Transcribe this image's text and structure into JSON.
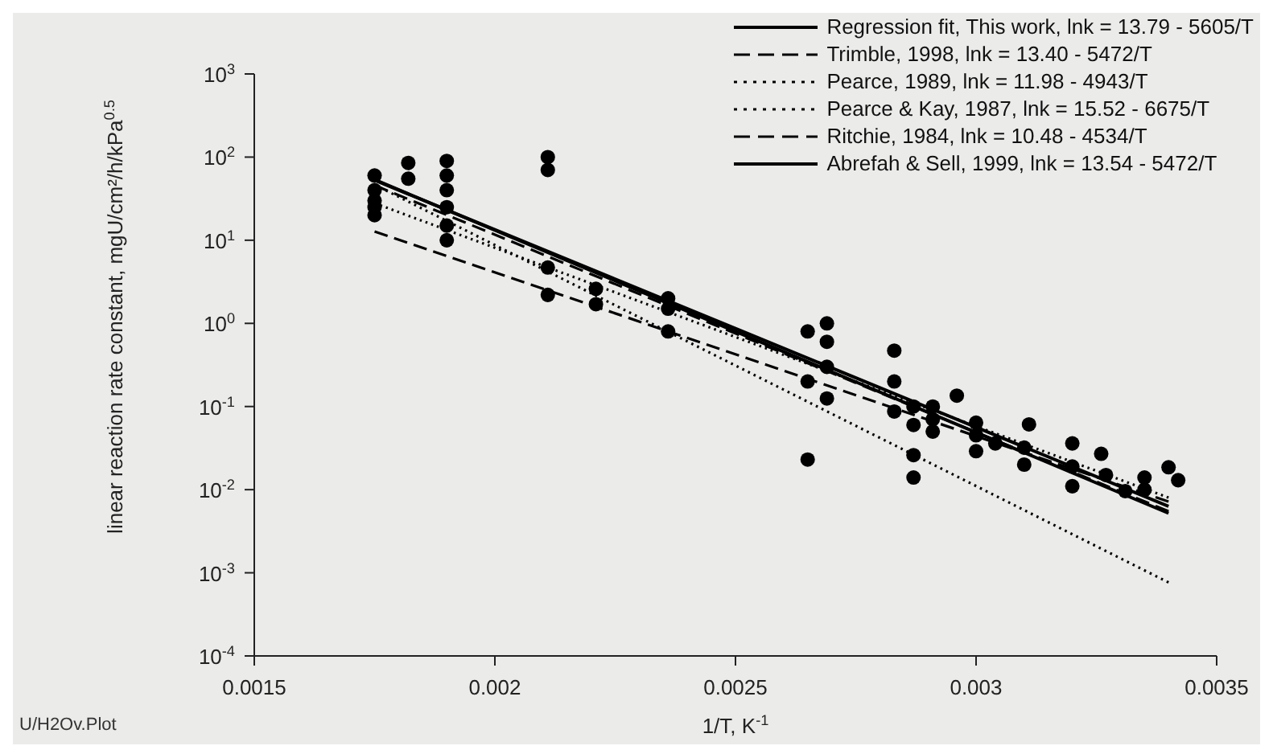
{
  "chart_data": {
    "type": "line",
    "xlabel": "1/T, K$^{-1}$",
    "ylabel": "linear reaction rate constant, mgU/cm²/h/kPa$^{0.5}$",
    "annotations": [
      "U/H2Ov.Plot"
    ],
    "xlim": [
      0.0015,
      0.0035
    ],
    "xticks": [
      0.0015,
      0.002,
      0.0025,
      0.003,
      0.0035
    ],
    "ylim": [
      0.0001,
      1000
    ],
    "yticks": [
      {
        "value": 0.0001,
        "label": "10$^{-4}$"
      },
      {
        "value": 0.001,
        "label": "10$^{-3}$"
      },
      {
        "value": 0.01,
        "label": "10$^{-2}$"
      },
      {
        "value": 0.1,
        "label": "10$^{-1}$"
      },
      {
        "value": 1,
        "label": "10$^{0}$"
      },
      {
        "value": 10,
        "label": "10$^{1}$"
      },
      {
        "value": 100,
        "label": "10$^{2}$"
      },
      {
        "value": 1000,
        "label": "10$^{3}$"
      }
    ],
    "log": "y",
    "grid": false,
    "legend": "top right",
    "marker": "none",
    "series": [
      {
        "name": "Regression fit, This work, lnk = 13.79 - 5605/T",
        "color": "#000000",
        "line_style": "solid",
        "x": [
          0.00175,
          0.0025,
          0.0034
        ],
        "values": [
          53.6,
          0.8,
          0.0052
        ]
      },
      {
        "name": "Trimble, 1998, lnk = 13.40 - 5472/T",
        "color": "#000000",
        "line_style": "dashed",
        "x": [
          0.00175,
          0.0025,
          0.0034
        ],
        "values": [
          45.8,
          0.756,
          0.00549
        ]
      },
      {
        "name": "Pearce, 1989, lnk = 11.98 - 4943/T",
        "color": "#000000",
        "line_style": "dotted",
        "x": [
          0.00175,
          0.0025,
          0.0034
        ],
        "values": [
          27.9,
          0.686,
          0.00802
        ]
      },
      {
        "name": "Pearce & Kay, 1987, lnk = 15.52 - 6675/T",
        "color": "#000000",
        "line_style": "dotted",
        "x": [
          0.00175,
          0.0025,
          0.0034
        ],
        "values": [
          46.5,
          0.311,
          0.000766
        ]
      },
      {
        "name": "Ritchie, 1984, lnk = 10.48 - 4534/T",
        "color": "#000000",
        "line_style": "dashed",
        "x": [
          0.00175,
          0.0025,
          0.0034
        ],
        "values": [
          12.75,
          0.425,
          0.00718
        ]
      },
      {
        "name": "Abrefah & Sell, 1999, lnk = 13.54 - 5472/T",
        "color": "#000000",
        "line_style": "solid",
        "x": [
          0.00175,
          0.0025,
          0.0034
        ],
        "values": [
          52.7,
          0.869,
          0.00631
        ]
      },
      {
        "type": "scatter",
        "color": "#000000",
        "marker": "circle",
        "x": [
          0.00175,
          0.00175,
          0.00175,
          0.00175,
          0.00175,
          0.00182,
          0.00182,
          0.0019,
          0.0019,
          0.0019,
          0.0019,
          0.0019,
          0.0019,
          0.00211,
          0.00211,
          0.00211,
          0.00211,
          0.00221,
          0.00221,
          0.00236,
          0.00236,
          0.00236,
          0.00265,
          0.00265,
          0.00265,
          0.00269,
          0.00269,
          0.00269,
          0.00269,
          0.00283,
          0.00283,
          0.00283,
          0.00287,
          0.00287,
          0.00287,
          0.00287,
          0.00291,
          0.00291,
          0.00291,
          0.00296,
          0.003,
          0.003,
          0.003,
          0.00304,
          0.0031,
          0.0031,
          0.00311,
          0.0032,
          0.0032,
          0.0032,
          0.00326,
          0.00327,
          0.00331,
          0.00335,
          0.00335,
          0.0034,
          0.00342
        ],
        "values": [
          60,
          40,
          30,
          25,
          20,
          55,
          85,
          90,
          60,
          40,
          25,
          15,
          10,
          100,
          70,
          4.7,
          2.2,
          2.6,
          1.7,
          2.0,
          1.5,
          0.8,
          0.8,
          0.2,
          0.023,
          1.0,
          0.6,
          0.3,
          0.125,
          0.47,
          0.2,
          0.087,
          0.1,
          0.06,
          0.026,
          0.014,
          0.1,
          0.07,
          0.05,
          0.135,
          0.064,
          0.045,
          0.029,
          0.036,
          0.032,
          0.02,
          0.061,
          0.036,
          0.019,
          0.011,
          0.027,
          0.015,
          0.0096,
          0.014,
          0.01,
          0.0186,
          0.013
        ]
      }
    ]
  }
}
